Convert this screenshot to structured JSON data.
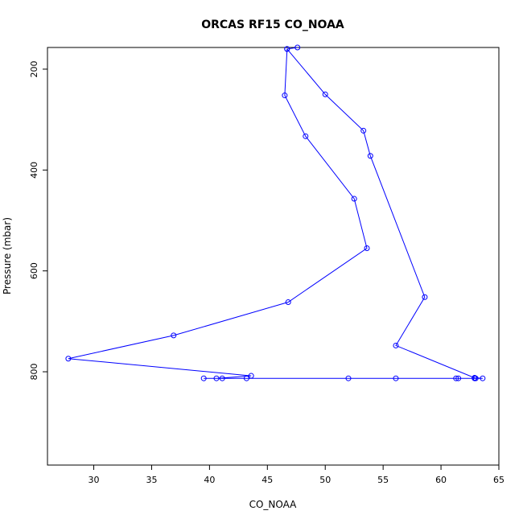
{
  "chart_data": {
    "type": "line",
    "title": "ORCAS RF15 CO_NOAA",
    "xlabel": "CO_NOAA",
    "ylabel": "Pressure (mbar)",
    "xlim": [
      26,
      65
    ],
    "ylim": [
      985,
      157
    ],
    "y_reversed": true,
    "grid": false,
    "legend": "none",
    "markers": "open-circle",
    "x_ticks": [
      30,
      35,
      40,
      45,
      50,
      55,
      60,
      65
    ],
    "y_ticks": [
      200,
      400,
      600,
      800
    ],
    "series": [
      {
        "color": "#0000ff",
        "points": [
          {
            "x": 47.6,
            "y": 157
          },
          {
            "x": 46.7,
            "y": 160
          },
          {
            "x": 46.5,
            "y": 252
          },
          {
            "x": 48.3,
            "y": 333
          },
          {
            "x": 52.5,
            "y": 457
          },
          {
            "x": 53.6,
            "y": 555
          },
          {
            "x": 46.8,
            "y": 662
          },
          {
            "x": 36.9,
            "y": 728
          },
          {
            "x": 27.8,
            "y": 774
          },
          {
            "x": 43.6,
            "y": 808
          },
          {
            "x": 40.6,
            "y": 813
          },
          {
            "x": 39.5,
            "y": 813
          },
          {
            "x": 41.1,
            "y": 813
          },
          {
            "x": 43.2,
            "y": 813
          },
          {
            "x": 52.0,
            "y": 813
          },
          {
            "x": 56.1,
            "y": 813
          },
          {
            "x": 61.3,
            "y": 813
          },
          {
            "x": 61.5,
            "y": 813
          },
          {
            "x": 62.9,
            "y": 813
          },
          {
            "x": 63.0,
            "y": 813
          },
          {
            "x": 63.6,
            "y": 813
          },
          {
            "x": 62.9,
            "y": 812
          },
          {
            "x": 56.1,
            "y": 748
          },
          {
            "x": 58.6,
            "y": 652
          },
          {
            "x": 53.9,
            "y": 372
          },
          {
            "x": 53.3,
            "y": 322
          },
          {
            "x": 50.0,
            "y": 250
          },
          {
            "x": 46.7,
            "y": 160
          }
        ]
      }
    ]
  }
}
